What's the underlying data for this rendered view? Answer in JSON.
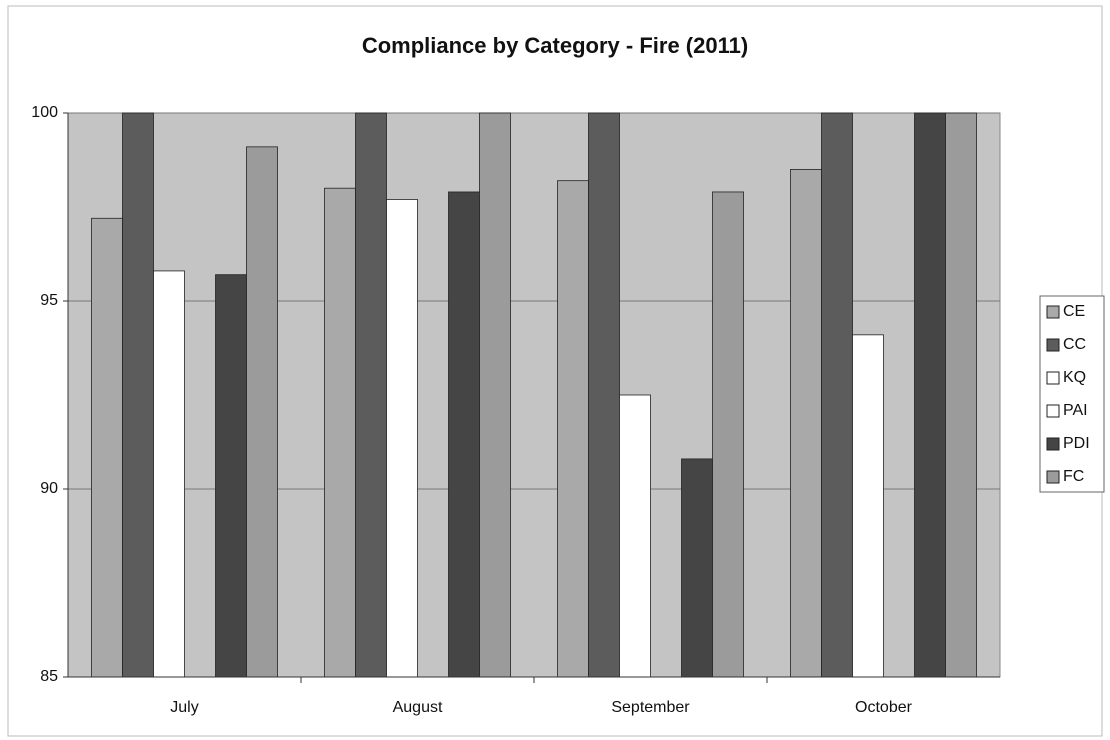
{
  "chart_data": {
    "type": "bar",
    "title": "Compliance by Category - Fire (2011)",
    "categories": [
      "July",
      "August",
      "September",
      "October"
    ],
    "series": [
      {
        "name": "CE",
        "color": "#a9a9a9",
        "values": [
          97.2,
          98.0,
          98.2,
          98.5
        ]
      },
      {
        "name": "CC",
        "color": "#5c5c5c",
        "values": [
          100,
          100,
          100,
          100
        ]
      },
      {
        "name": "KQ",
        "color": "#ffffff",
        "values": [
          95.8,
          97.7,
          92.5,
          94.1
        ]
      },
      {
        "name": "PAI",
        "color": "#ffffff",
        "values": [
          null,
          null,
          null,
          null
        ]
      },
      {
        "name": "PDI",
        "color": "#454545",
        "values": [
          95.7,
          97.9,
          90.8,
          100
        ]
      },
      {
        "name": "FC",
        "color": "#9b9b9b",
        "values": [
          99.1,
          100,
          97.9,
          100
        ]
      }
    ],
    "ylim": [
      85,
      100
    ],
    "yticks": [
      85,
      90,
      95,
      100
    ],
    "grid": true,
    "legend": "right"
  }
}
